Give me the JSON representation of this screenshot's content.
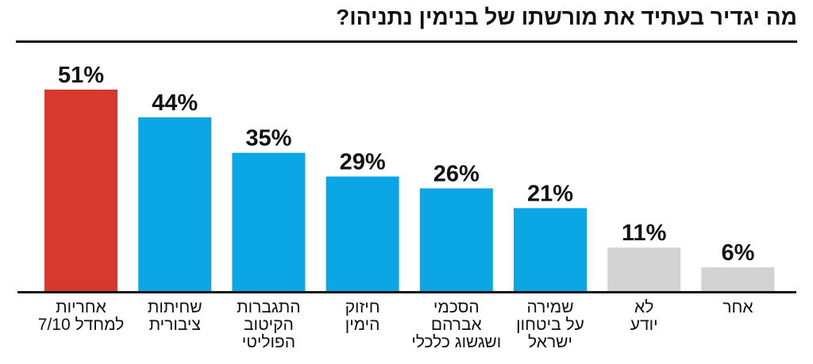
{
  "chart_data": {
    "type": "bar",
    "title": "מה יגדיר בעתיד את מורשתו של בנימין נתניהו?",
    "categories": [
      [
        "אחריות",
        "למחדל 7/10"
      ],
      [
        "שחיתות",
        "ציבורית"
      ],
      [
        "התגברות",
        "הקיטוב",
        "הפוליטי"
      ],
      [
        "חיזוק",
        "הימין"
      ],
      [
        "הסכמי",
        "אברהם",
        "ושגשוג כלכלי"
      ],
      [
        "שמירה",
        "על ביטחון",
        "ישראל"
      ],
      [
        "לא",
        "יודע"
      ],
      [
        "אחר"
      ]
    ],
    "values": [
      51,
      44,
      35,
      29,
      26,
      21,
      11,
      6
    ],
    "data_labels": [
      "51%",
      "44%",
      "35%",
      "29%",
      "26%",
      "21%",
      "11%",
      "6%"
    ],
    "colors": [
      "#d8392f",
      "#0aa6e6",
      "#0aa6e6",
      "#0aa6e6",
      "#0aa6e6",
      "#0aa6e6",
      "#d2d2d2",
      "#d2d2d2"
    ],
    "xlabel": "",
    "ylabel": "",
    "ylim": [
      0,
      51
    ],
    "grid": false
  }
}
